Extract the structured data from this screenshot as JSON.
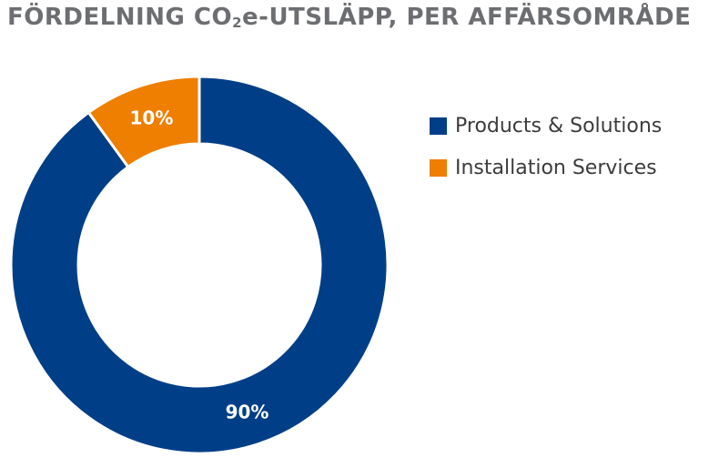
{
  "chart_data": {
    "type": "pie",
    "title_main": "FÖRDELNING CO",
    "title_sub": "2",
    "title_rest": "e-UTSLÄPP, PER AFFÄRSOMRÅDE",
    "categories": [
      "Products & Solutions",
      "Installation Services"
    ],
    "values": [
      90,
      10
    ],
    "value_labels": [
      "90%",
      "10%"
    ],
    "colors": [
      "#003f87",
      "#ee7f00"
    ],
    "legend_position": "right"
  }
}
